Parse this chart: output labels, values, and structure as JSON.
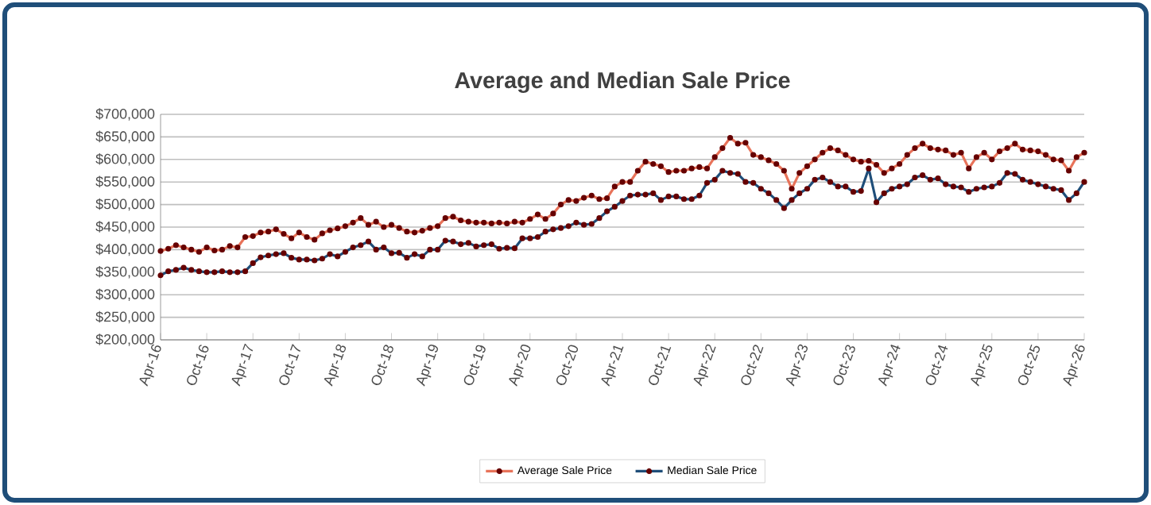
{
  "chart_data": {
    "type": "line",
    "title": "Average and Median Sale Price",
    "x": [
      "2016-04",
      "2016-05",
      "2016-06",
      "2016-07",
      "2016-08",
      "2016-09",
      "2016-10",
      "2016-11",
      "2016-12",
      "2017-01",
      "2017-02",
      "2017-03",
      "2017-04",
      "2017-05",
      "2017-06",
      "2017-07",
      "2017-08",
      "2017-09",
      "2017-10",
      "2017-11",
      "2017-12",
      "2018-01",
      "2018-02",
      "2018-03",
      "2018-04",
      "2018-05",
      "2018-06",
      "2018-07",
      "2018-08",
      "2018-09",
      "2018-10",
      "2018-11",
      "2018-12",
      "2019-01",
      "2019-02",
      "2019-03",
      "2019-04",
      "2019-05",
      "2019-06",
      "2019-07",
      "2019-08",
      "2019-09",
      "2019-10",
      "2019-11",
      "2019-12",
      "2020-01",
      "2020-02",
      "2020-03",
      "2020-04",
      "2020-05",
      "2020-06",
      "2020-07",
      "2020-08",
      "2020-09",
      "2020-10",
      "2020-11",
      "2020-12",
      "2021-01",
      "2021-02",
      "2021-03",
      "2021-04",
      "2021-05",
      "2021-06",
      "2021-07",
      "2021-08",
      "2021-09",
      "2021-10",
      "2021-11",
      "2021-12",
      "2022-01",
      "2022-02",
      "2022-03",
      "2022-04",
      "2022-05",
      "2022-06",
      "2022-07",
      "2022-08",
      "2022-09",
      "2022-10",
      "2022-11",
      "2022-12",
      "2023-01",
      "2023-02",
      "2023-03",
      "2023-04",
      "2023-05",
      "2023-06",
      "2023-07",
      "2023-08",
      "2023-09",
      "2023-10",
      "2023-11",
      "2023-12",
      "2024-01",
      "2024-02",
      "2024-03",
      "2024-04",
      "2024-05",
      "2024-06",
      "2024-07",
      "2024-08",
      "2024-09",
      "2024-10",
      "2024-11",
      "2024-12",
      "2025-01",
      "2025-02",
      "2025-03",
      "2025-04",
      "2025-05",
      "2025-06",
      "2025-07",
      "2025-08",
      "2025-09",
      "2025-10",
      "2025-11",
      "2025-12",
      "2026-01",
      "2026-02",
      "2026-03",
      "2026-04"
    ],
    "series": [
      {
        "name": "Average Sale Price",
        "color": "#e8735a",
        "values": [
          397000,
          402000,
          410000,
          405000,
          400000,
          395000,
          405000,
          398000,
          400000,
          408000,
          405000,
          428000,
          430000,
          438000,
          440000,
          445000,
          435000,
          425000,
          438000,
          428000,
          422000,
          436000,
          443000,
          447000,
          452000,
          460000,
          470000,
          455000,
          462000,
          450000,
          455000,
          448000,
          440000,
          438000,
          442000,
          448000,
          452000,
          470000,
          473000,
          465000,
          462000,
          460000,
          460000,
          458000,
          460000,
          458000,
          462000,
          460000,
          468000,
          478000,
          468000,
          480000,
          500000,
          510000,
          508000,
          515000,
          520000,
          512000,
          514000,
          540000,
          550000,
          550000,
          575000,
          595000,
          590000,
          585000,
          572000,
          575000,
          575000,
          580000,
          583000,
          580000,
          605000,
          625000,
          648000,
          635000,
          637000,
          610000,
          605000,
          598000,
          590000,
          575000,
          535000,
          570000,
          585000,
          600000,
          615000,
          625000,
          620000,
          610000,
          600000,
          595000,
          597000,
          588000,
          570000,
          580000,
          590000,
          610000,
          625000,
          635000,
          625000,
          622000,
          620000,
          610000,
          615000,
          580000,
          605000,
          615000,
          600000,
          618000,
          625000,
          635000,
          622000,
          620000,
          618000,
          610000,
          600000,
          598000,
          575000,
          605000,
          615000
        ]
      },
      {
        "name": "Median Sale Price",
        "color": "#1f4e79",
        "values": [
          343000,
          352000,
          355000,
          360000,
          355000,
          352000,
          350000,
          350000,
          352000,
          350000,
          350000,
          352000,
          370000,
          383000,
          387000,
          390000,
          392000,
          382000,
          378000,
          378000,
          376000,
          380000,
          390000,
          385000,
          395000,
          405000,
          410000,
          418000,
          400000,
          405000,
          392000,
          393000,
          382000,
          390000,
          385000,
          400000,
          400000,
          420000,
          418000,
          412000,
          415000,
          407000,
          410000,
          412000,
          402000,
          404000,
          403000,
          425000,
          425000,
          428000,
          440000,
          445000,
          448000,
          452000,
          460000,
          455000,
          457000,
          470000,
          485000,
          495000,
          508000,
          520000,
          522000,
          522000,
          525000,
          510000,
          518000,
          518000,
          512000,
          512000,
          520000,
          548000,
          555000,
          575000,
          570000,
          568000,
          550000,
          548000,
          535000,
          525000,
          510000,
          492000,
          510000,
          525000,
          535000,
          555000,
          560000,
          550000,
          540000,
          540000,
          528000,
          530000,
          580000,
          505000,
          525000,
          535000,
          540000,
          545000,
          560000,
          565000,
          555000,
          558000,
          545000,
          540000,
          538000,
          528000,
          535000,
          538000,
          540000,
          548000,
          570000,
          568000,
          555000,
          550000,
          545000,
          540000,
          535000,
          532000,
          510000,
          525000,
          550000
        ]
      }
    ],
    "xlim": [
      "2016-04",
      "2026-04"
    ],
    "xticks": [
      {
        "value": "2016-04",
        "label": "Apr-16"
      },
      {
        "value": "2016-10",
        "label": "Oct-16"
      },
      {
        "value": "2017-04",
        "label": "Apr-17"
      },
      {
        "value": "2017-10",
        "label": "Oct-17"
      },
      {
        "value": "2018-04",
        "label": "Apr-18"
      },
      {
        "value": "2018-10",
        "label": "Oct-18"
      },
      {
        "value": "2019-04",
        "label": "Apr-19"
      },
      {
        "value": "2019-10",
        "label": "Oct-19"
      },
      {
        "value": "2020-04",
        "label": "Apr-20"
      },
      {
        "value": "2020-10",
        "label": "Oct-20"
      },
      {
        "value": "2021-04",
        "label": "Apr-21"
      },
      {
        "value": "2021-10",
        "label": "Oct-21"
      },
      {
        "value": "2022-04",
        "label": "Apr-22"
      },
      {
        "value": "2022-10",
        "label": "Oct-22"
      },
      {
        "value": "2023-04",
        "label": "Apr-23"
      },
      {
        "value": "2023-10",
        "label": "Oct-23"
      },
      {
        "value": "2024-04",
        "label": "Apr-24"
      },
      {
        "value": "2024-10",
        "label": "Oct-24"
      },
      {
        "value": "2025-04",
        "label": "Apr-25"
      },
      {
        "value": "2025-10",
        "label": "Oct-25"
      },
      {
        "value": "2026-04",
        "label": "Apr-26"
      }
    ],
    "ylim": [
      200000,
      700000
    ],
    "yticks": [
      {
        "value": 200000,
        "label": "$200,000"
      },
      {
        "value": 250000,
        "label": "$250,000"
      },
      {
        "value": 300000,
        "label": "$300,000"
      },
      {
        "value": 350000,
        "label": "$350,000"
      },
      {
        "value": 400000,
        "label": "$400,000"
      },
      {
        "value": 450000,
        "label": "$450,000"
      },
      {
        "value": 500000,
        "label": "$500,000"
      },
      {
        "value": 550000,
        "label": "$550,000"
      },
      {
        "value": 600000,
        "label": "$600,000"
      },
      {
        "value": 650000,
        "label": "$650,000"
      },
      {
        "value": 700000,
        "label": "$700,000"
      }
    ],
    "grid": "y",
    "legend": "bottom",
    "marker": "circle",
    "line_style": "solid"
  }
}
